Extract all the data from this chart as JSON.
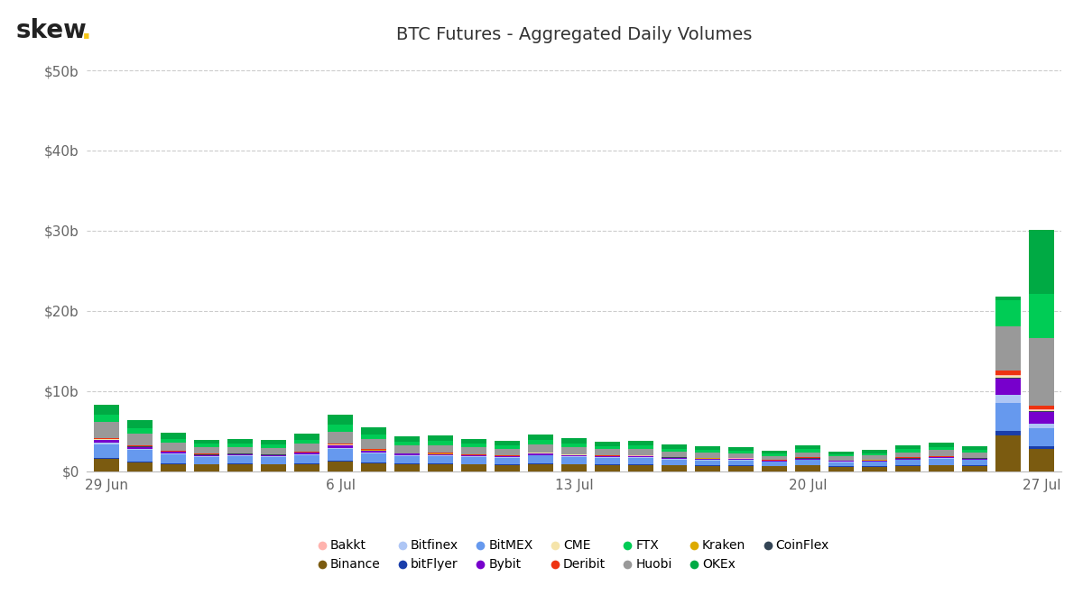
{
  "title": "BTC Futures - Aggregated Daily Volumes",
  "background_color": "#ffffff",
  "grid_color": "#cccccc",
  "ytick_labels": [
    "$0",
    "$10b",
    "$20b",
    "$30b",
    "$40b",
    "$50b"
  ],
  "ytick_values": [
    0,
    10,
    20,
    30,
    40,
    50
  ],
  "ylim": [
    0,
    52
  ],
  "xtick_labels": [
    "29 Jun",
    "6 Jul",
    "13 Jul",
    "20 Jul",
    "27 Jul"
  ],
  "xtick_positions": [
    0,
    7,
    14,
    21,
    28
  ],
  "colors": {
    "Bakkt": "#ffb3ae",
    "Binance": "#7B5B10",
    "Bitfinex": "#aec6f5",
    "bitFlyer": "#1a3eaa",
    "BitMEX": "#6699ee",
    "Bybit": "#7700cc",
    "CME": "#f5e4aa",
    "Deribit": "#ee3311",
    "FTX": "#00cc55",
    "Huobi": "#999999",
    "Kraken": "#ddaa00",
    "OKEx": "#00aa44",
    "CoinFlex": "#334455"
  },
  "stack_order": [
    "Binance",
    "bitFlyer",
    "BitMEX",
    "Bitfinex",
    "Bybit",
    "CoinFlex",
    "Kraken",
    "CME",
    "Bakkt",
    "Deribit",
    "Huobi",
    "FTX",
    "OKEx"
  ],
  "legend_order": [
    "Bakkt",
    "Binance",
    "Bitfinex",
    "bitFlyer",
    "BitMEX",
    "Bybit",
    "CME",
    "Deribit",
    "FTX",
    "Huobi",
    "Kraken",
    "OKEx",
    "CoinFlex"
  ],
  "n_dates": 29,
  "data": {
    "Binance": [
      1.5,
      1.1,
      0.9,
      0.8,
      0.85,
      0.8,
      0.9,
      1.2,
      1.0,
      0.9,
      0.85,
      0.8,
      0.75,
      0.9,
      0.8,
      0.75,
      0.75,
      0.7,
      0.65,
      0.65,
      0.6,
      0.7,
      0.55,
      0.55,
      0.65,
      0.7,
      0.65,
      4.5,
      2.8
    ],
    "bitFlyer": [
      0.15,
      0.12,
      0.1,
      0.08,
      0.08,
      0.08,
      0.1,
      0.12,
      0.1,
      0.08,
      0.08,
      0.08,
      0.07,
      0.08,
      0.08,
      0.07,
      0.07,
      0.07,
      0.06,
      0.06,
      0.06,
      0.07,
      0.06,
      0.06,
      0.07,
      0.07,
      0.07,
      0.5,
      0.35
    ],
    "BitMEX": [
      1.7,
      1.4,
      1.1,
      0.9,
      0.95,
      0.9,
      1.0,
      1.4,
      1.1,
      0.9,
      0.9,
      0.85,
      0.8,
      0.95,
      0.85,
      0.8,
      0.8,
      0.7,
      0.65,
      0.6,
      0.5,
      0.6,
      0.5,
      0.55,
      0.65,
      0.75,
      0.65,
      3.5,
      2.2
    ],
    "Bitfinex": [
      0.2,
      0.18,
      0.14,
      0.1,
      0.1,
      0.1,
      0.12,
      0.18,
      0.14,
      0.1,
      0.1,
      0.09,
      0.08,
      0.1,
      0.09,
      0.08,
      0.08,
      0.08,
      0.07,
      0.07,
      0.06,
      0.07,
      0.06,
      0.07,
      0.08,
      0.09,
      0.08,
      1.0,
      0.55
    ],
    "Bybit": [
      0.3,
      0.24,
      0.18,
      0.15,
      0.15,
      0.15,
      0.18,
      0.28,
      0.22,
      0.18,
      0.18,
      0.16,
      0.14,
      0.18,
      0.16,
      0.14,
      0.14,
      0.13,
      0.12,
      0.11,
      0.1,
      0.13,
      0.1,
      0.1,
      0.12,
      0.15,
      0.12,
      2.0,
      1.5
    ],
    "CoinFlex": [
      0.04,
      0.03,
      0.03,
      0.02,
      0.02,
      0.02,
      0.03,
      0.04,
      0.03,
      0.02,
      0.02,
      0.02,
      0.02,
      0.02,
      0.02,
      0.02,
      0.02,
      0.02,
      0.02,
      0.02,
      0.02,
      0.02,
      0.02,
      0.02,
      0.02,
      0.02,
      0.02,
      0.1,
      0.07
    ],
    "Kraken": [
      0.04,
      0.03,
      0.03,
      0.02,
      0.02,
      0.02,
      0.03,
      0.04,
      0.03,
      0.02,
      0.02,
      0.02,
      0.02,
      0.02,
      0.02,
      0.02,
      0.02,
      0.02,
      0.02,
      0.02,
      0.02,
      0.02,
      0.02,
      0.02,
      0.02,
      0.03,
      0.02,
      0.08,
      0.06
    ],
    "CME": [
      0.05,
      0.0,
      0.0,
      0.04,
      0.0,
      0.0,
      0.0,
      0.05,
      0.04,
      0.0,
      0.04,
      0.0,
      0.0,
      0.04,
      0.04,
      0.0,
      0.04,
      0.0,
      0.0,
      0.04,
      0.0,
      0.04,
      0.0,
      0.0,
      0.04,
      0.0,
      0.0,
      0.2,
      0.1
    ],
    "Bakkt": [
      0.02,
      0.0,
      0.0,
      0.02,
      0.0,
      0.0,
      0.0,
      0.02,
      0.02,
      0.0,
      0.02,
      0.0,
      0.0,
      0.02,
      0.02,
      0.0,
      0.02,
      0.0,
      0.0,
      0.02,
      0.0,
      0.02,
      0.0,
      0.0,
      0.02,
      0.0,
      0.0,
      0.15,
      0.08
    ],
    "Deribit": [
      0.1,
      0.08,
      0.07,
      0.06,
      0.06,
      0.06,
      0.07,
      0.09,
      0.07,
      0.06,
      0.06,
      0.05,
      0.05,
      0.06,
      0.06,
      0.05,
      0.05,
      0.05,
      0.05,
      0.05,
      0.04,
      0.05,
      0.04,
      0.04,
      0.05,
      0.05,
      0.05,
      0.55,
      0.4
    ],
    "Huobi": [
      2.0,
      1.5,
      1.0,
      0.8,
      0.8,
      0.8,
      1.0,
      1.5,
      1.2,
      1.0,
      1.0,
      0.9,
      0.85,
      1.0,
      0.9,
      0.8,
      0.8,
      0.7,
      0.65,
      0.6,
      0.5,
      0.65,
      0.5,
      0.55,
      0.65,
      0.75,
      0.65,
      5.5,
      8.5
    ],
    "FTX": [
      0.9,
      0.7,
      0.5,
      0.4,
      0.4,
      0.4,
      0.5,
      0.9,
      0.65,
      0.45,
      0.5,
      0.45,
      0.4,
      0.5,
      0.45,
      0.4,
      0.4,
      0.35,
      0.35,
      0.3,
      0.25,
      0.35,
      0.27,
      0.3,
      0.38,
      0.42,
      0.38,
      3.2,
      5.5
    ],
    "OKEx": [
      1.3,
      1.0,
      0.75,
      0.55,
      0.6,
      0.55,
      0.7,
      1.2,
      0.9,
      0.65,
      0.65,
      0.6,
      0.55,
      0.65,
      0.6,
      0.55,
      0.55,
      0.5,
      0.45,
      0.4,
      0.35,
      0.45,
      0.35,
      0.38,
      0.45,
      0.5,
      0.45,
      0.5,
      8.0
    ]
  }
}
